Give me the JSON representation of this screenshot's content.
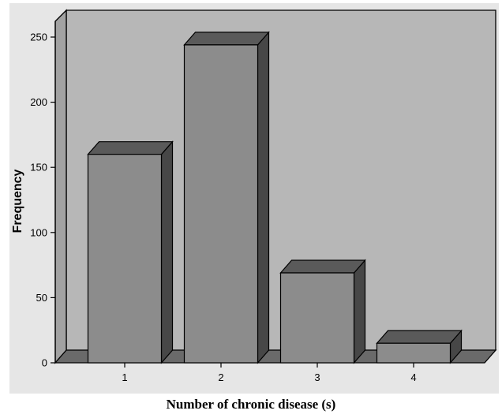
{
  "chart_data": {
    "type": "bar",
    "categories": [
      "1",
      "2",
      "3",
      "4"
    ],
    "values": [
      160,
      244,
      69,
      15
    ],
    "xlabel": "Number of chronic disease (s)",
    "ylabel": "Frequency",
    "ylim": [
      0,
      250
    ],
    "yticks": [
      "0",
      "50",
      "100",
      "150",
      "200",
      "250"
    ],
    "grid": false,
    "colors": {
      "bar_front": "#8c8c8c",
      "bar_side": "#474747",
      "bar_top": "#5a5a5a",
      "wall_back": "#b7b7b7",
      "wall_left": "#a2a2a2",
      "floor": "#6a6a6a",
      "plot_bg": "#e6e6e6",
      "edge": "#000000"
    }
  }
}
